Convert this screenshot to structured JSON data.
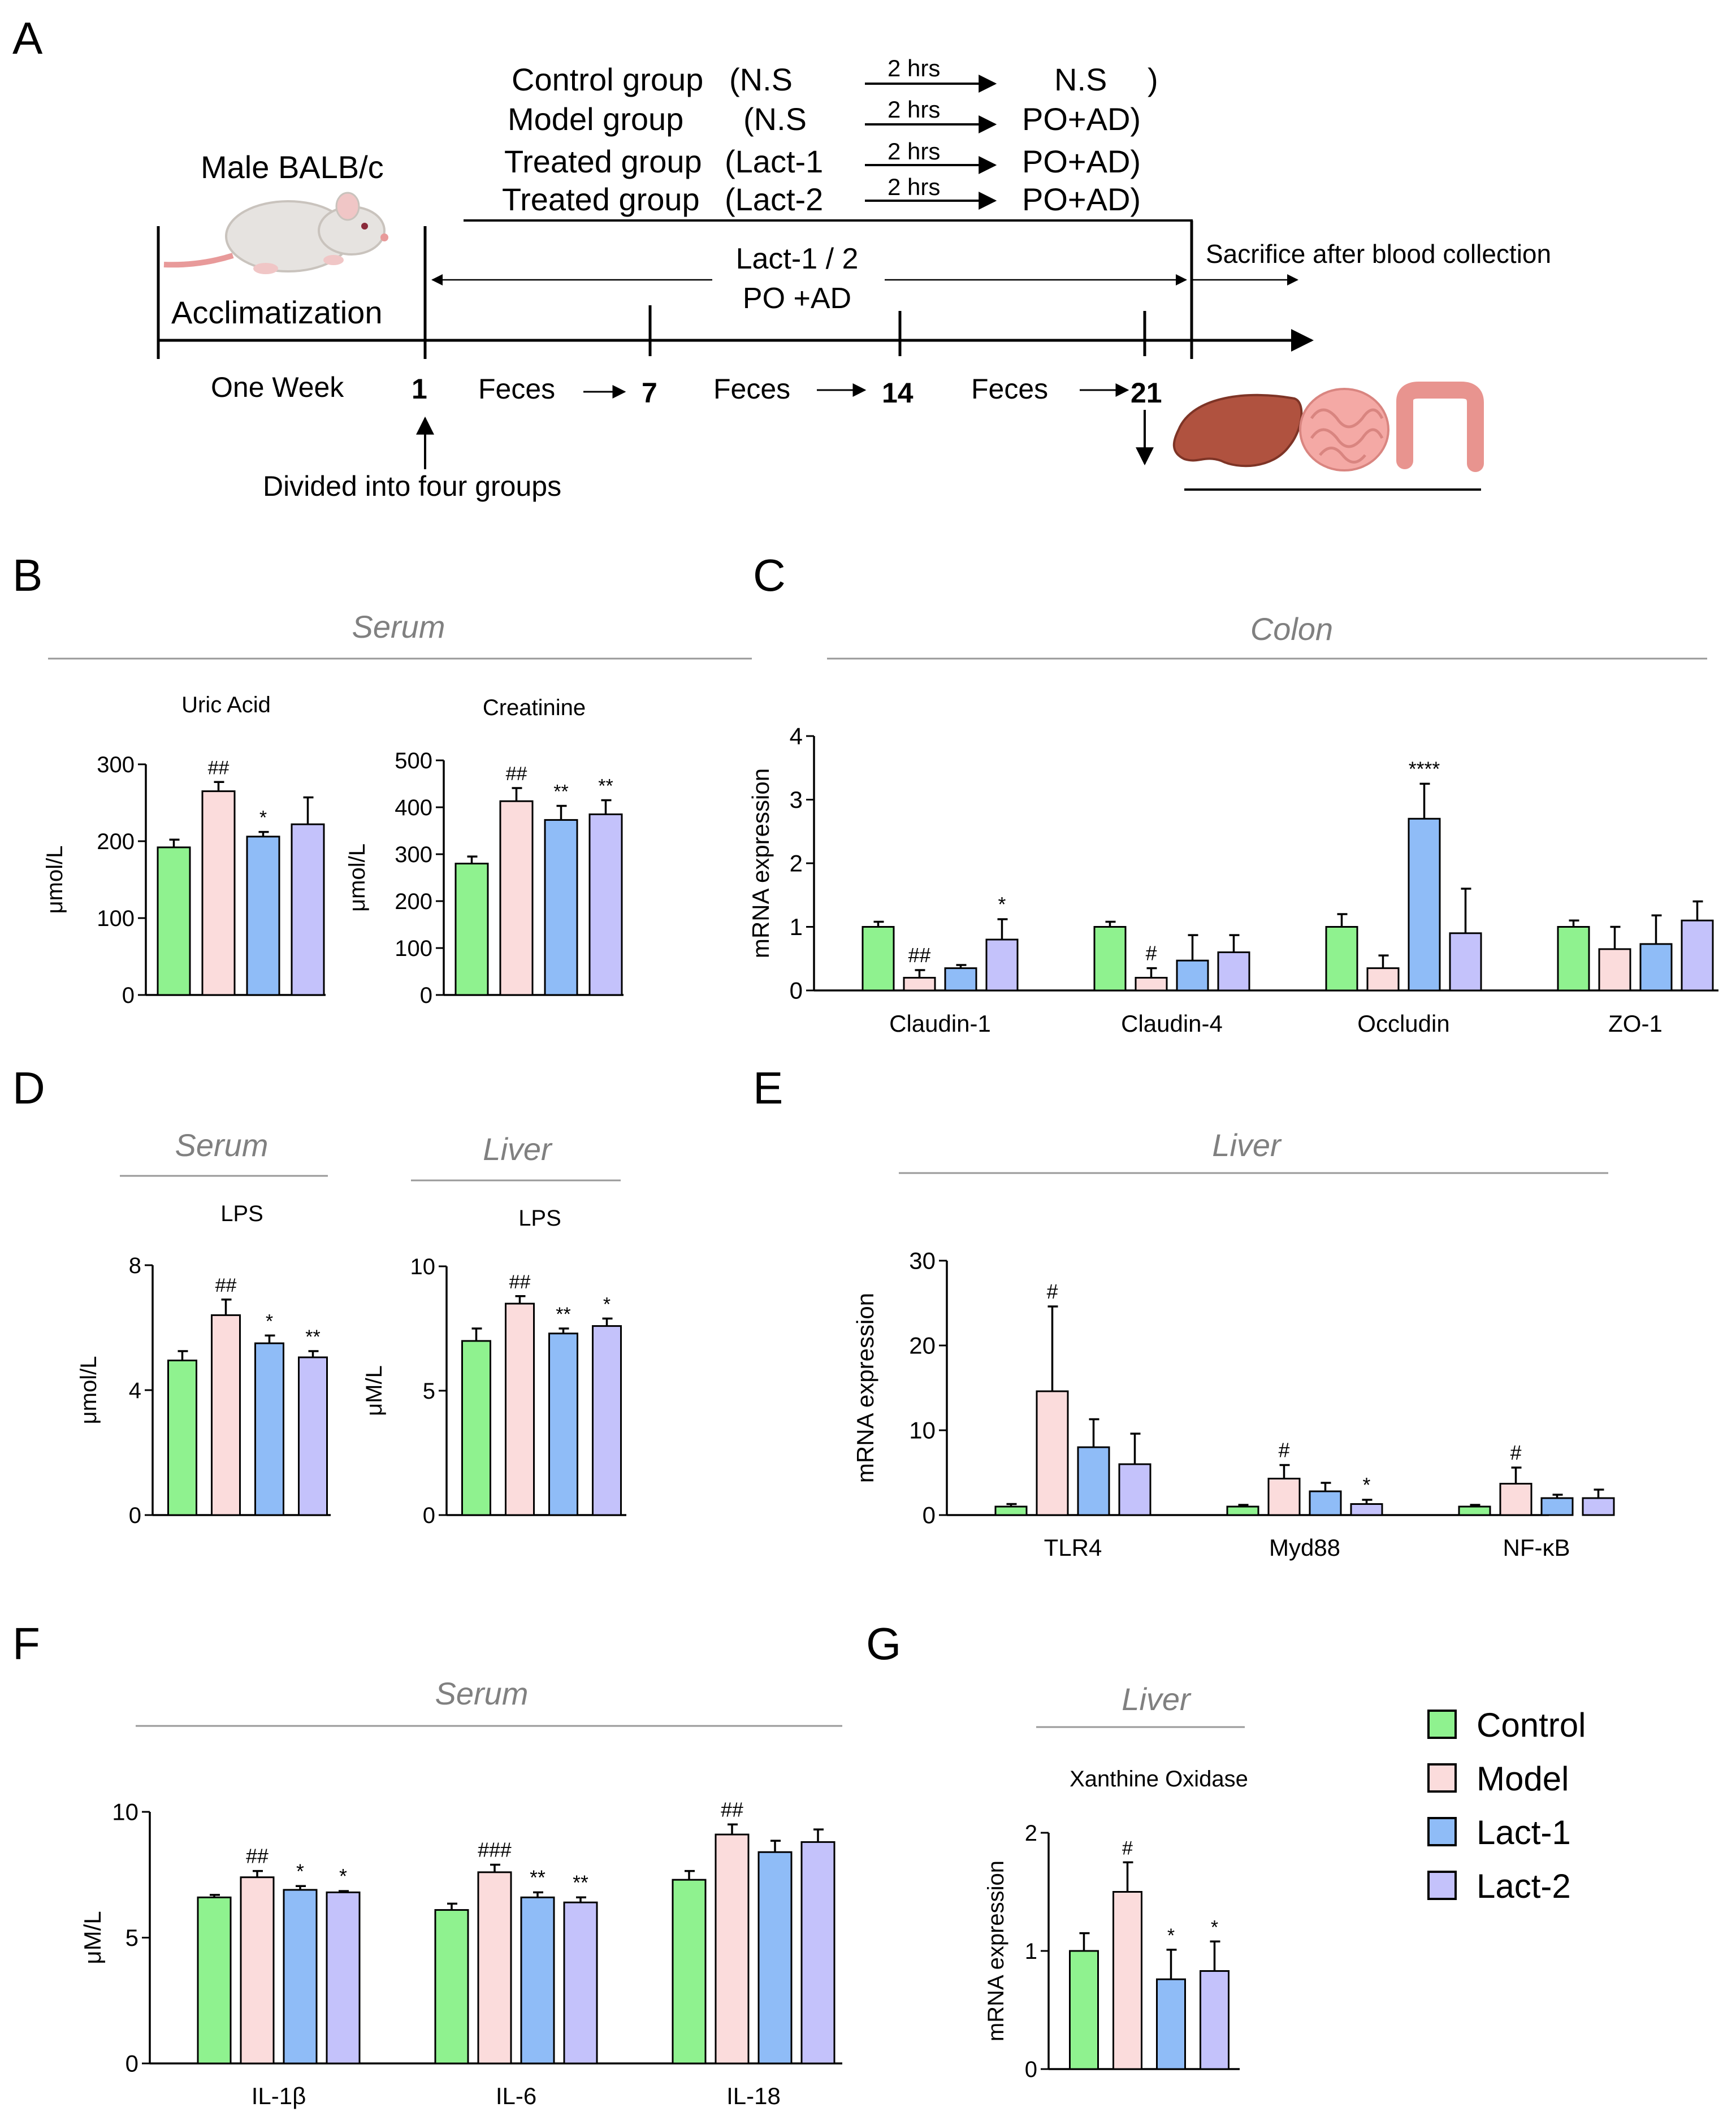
{
  "colors": {
    "Control": "#8ff28f",
    "Model": "#fbdcdc",
    "Lact-1": "#8fbcf7",
    "Lact-2": "#c4c2fb",
    "grey_text": "#808080"
  },
  "panel_A": {
    "label": "A",
    "animal": "Male BALB/c",
    "acclimatization": "Acclimatization",
    "groups": [
      {
        "name": "Control group",
        "pre": "(N.S",
        "interval": "2 hrs",
        "post": "N.S",
        "close": ")"
      },
      {
        "name": "Model group",
        "pre": "(N.S",
        "interval": "2 hrs",
        "post": "PO+AD)",
        "close": ""
      },
      {
        "name": "Treated group",
        "pre": "(Lact-1",
        "interval": "2 hrs",
        "post": "PO+AD)",
        "close": ""
      },
      {
        "name": "Treated group",
        "pre": "(Lact-2",
        "interval": "2 hrs",
        "post": "PO+AD)",
        "close": ""
      }
    ],
    "treatment_line1": "Lact-1 / 2",
    "treatment_line2": "PO +AD",
    "sacrifice": "Sacrifice after blood collection",
    "one_week": "One Week",
    "days": [
      "1",
      "7",
      "14",
      "21"
    ],
    "feces": "Feces",
    "divided": "Divided into four groups",
    "organ_icons": [
      "liver-icon",
      "small-intestine-icon",
      "colon-icon"
    ]
  },
  "legend": [
    "Control",
    "Model",
    "Lact-1",
    "Lact-2"
  ],
  "chart_data": [
    {
      "id": "B1",
      "panel": "B",
      "type": "bar",
      "section": "Serum",
      "title": "Uric Acid",
      "ylabel": "μmol/L",
      "ylim": [
        0,
        300
      ],
      "yticks": [
        "0",
        "100",
        "200",
        "300"
      ],
      "categories": [
        ""
      ],
      "series": [
        {
          "name": "Control",
          "values": [
            192
          ],
          "err": [
            10
          ],
          "sig": [
            ""
          ]
        },
        {
          "name": "Model",
          "values": [
            265
          ],
          "err": [
            12
          ],
          "sig": [
            "##"
          ]
        },
        {
          "name": "Lact-1",
          "values": [
            206
          ],
          "err": [
            6
          ],
          "sig": [
            "*"
          ]
        },
        {
          "name": "Lact-2",
          "values": [
            222
          ],
          "err": [
            35
          ],
          "sig": [
            ""
          ]
        }
      ]
    },
    {
      "id": "B2",
      "panel": "B",
      "type": "bar",
      "title": "Creatinine",
      "ylabel": "μmol/L",
      "ylim": [
        0,
        500
      ],
      "yticks": [
        "0",
        "100",
        "200",
        "300",
        "400",
        "500"
      ],
      "categories": [
        ""
      ],
      "series": [
        {
          "name": "Control",
          "values": [
            280
          ],
          "err": [
            15
          ],
          "sig": [
            ""
          ]
        },
        {
          "name": "Model",
          "values": [
            413
          ],
          "err": [
            28
          ],
          "sig": [
            "##"
          ]
        },
        {
          "name": "Lact-1",
          "values": [
            373
          ],
          "err": [
            30
          ],
          "sig": [
            "**"
          ]
        },
        {
          "name": "Lact-2",
          "values": [
            385
          ],
          "err": [
            30
          ],
          "sig": [
            "**"
          ]
        }
      ]
    },
    {
      "id": "C",
      "panel": "C",
      "type": "bar",
      "section": "Colon",
      "title": "",
      "ylabel": "mRNA expression",
      "ylim": [
        0,
        4
      ],
      "yticks": [
        "0",
        "1",
        "2",
        "3",
        "4"
      ],
      "categories": [
        "Claudin-1",
        "Claudin-4",
        "Occludin",
        "ZO-1"
      ],
      "series": [
        {
          "name": "Control",
          "values": [
            1.0,
            1.0,
            1.0,
            1.0
          ],
          "err": [
            0.08,
            0.08,
            0.2,
            0.1
          ],
          "sig": [
            "",
            "",
            "",
            ""
          ]
        },
        {
          "name": "Model",
          "values": [
            0.2,
            0.2,
            0.35,
            0.65
          ],
          "err": [
            0.12,
            0.15,
            0.2,
            0.35
          ],
          "sig": [
            "##",
            "#",
            "",
            ""
          ]
        },
        {
          "name": "Lact-1",
          "values": [
            0.35,
            0.47,
            2.7,
            0.73
          ],
          "err": [
            0.05,
            0.4,
            0.55,
            0.45
          ],
          "sig": [
            "",
            "",
            "****",
            ""
          ]
        },
        {
          "name": "Lact-2",
          "values": [
            0.8,
            0.6,
            0.9,
            1.1
          ],
          "err": [
            0.32,
            0.27,
            0.7,
            0.3
          ],
          "sig": [
            "*",
            "",
            "",
            ""
          ]
        }
      ]
    },
    {
      "id": "D1",
      "panel": "D",
      "type": "bar",
      "section": "Serum",
      "title": "LPS",
      "ylabel": "μmol/L",
      "ylim": [
        0,
        8
      ],
      "yticks": [
        "0",
        "4",
        "8"
      ],
      "categories": [
        ""
      ],
      "series": [
        {
          "name": "Control",
          "values": [
            4.95
          ],
          "err": [
            0.3
          ],
          "sig": [
            ""
          ]
        },
        {
          "name": "Model",
          "values": [
            6.4
          ],
          "err": [
            0.5
          ],
          "sig": [
            "##"
          ]
        },
        {
          "name": "Lact-1",
          "values": [
            5.5
          ],
          "err": [
            0.25
          ],
          "sig": [
            "*"
          ]
        },
        {
          "name": "Lact-2",
          "values": [
            5.05
          ],
          "err": [
            0.2
          ],
          "sig": [
            "**"
          ]
        }
      ]
    },
    {
      "id": "D2",
      "panel": "D",
      "type": "bar",
      "section": "Liver",
      "title": "LPS",
      "ylabel": "μM/L",
      "ylim": [
        0,
        10
      ],
      "yticks": [
        "0",
        "5",
        "10"
      ],
      "categories": [
        ""
      ],
      "series": [
        {
          "name": "Control",
          "values": [
            7.0
          ],
          "err": [
            0.5
          ],
          "sig": [
            ""
          ]
        },
        {
          "name": "Model",
          "values": [
            8.5
          ],
          "err": [
            0.3
          ],
          "sig": [
            "##"
          ]
        },
        {
          "name": "Lact-1",
          "values": [
            7.3
          ],
          "err": [
            0.2
          ],
          "sig": [
            "**"
          ]
        },
        {
          "name": "Lact-2",
          "values": [
            7.6
          ],
          "err": [
            0.3
          ],
          "sig": [
            "*"
          ]
        }
      ]
    },
    {
      "id": "E",
      "panel": "E",
      "type": "bar",
      "section": "Liver",
      "title": "",
      "ylabel": "mRNA expression",
      "ylim": [
        0,
        30
      ],
      "yticks": [
        "0",
        "10",
        "20",
        "30"
      ],
      "categories": [
        "TLR4",
        "Myd88",
        "NF-κB"
      ],
      "series": [
        {
          "name": "Control",
          "values": [
            1.0,
            1.0,
            1.0
          ],
          "err": [
            0.3,
            0.2,
            0.2
          ],
          "sig": [
            "",
            "",
            ""
          ]
        },
        {
          "name": "Model",
          "values": [
            14.6,
            4.3,
            3.7
          ],
          "err": [
            10,
            1.6,
            1.9
          ],
          "sig": [
            "#",
            "#",
            "#"
          ]
        },
        {
          "name": "Lact-1",
          "values": [
            8.0,
            2.8,
            2.0
          ],
          "err": [
            3.3,
            1.0,
            0.4
          ],
          "sig": [
            "",
            "",
            ""
          ]
        },
        {
          "name": "Lact-2",
          "values": [
            6.0,
            1.3,
            2.0
          ],
          "err": [
            3.6,
            0.5,
            1.0
          ],
          "sig": [
            "",
            "*",
            ""
          ]
        }
      ]
    },
    {
      "id": "F",
      "panel": "F",
      "type": "bar",
      "section": "Serum",
      "title": "",
      "ylabel": "μM/L",
      "ylim": [
        0,
        10
      ],
      "yticks": [
        "0",
        "5",
        "10"
      ],
      "categories": [
        "IL-1β",
        "IL-6",
        "IL-18"
      ],
      "series": [
        {
          "name": "Control",
          "values": [
            6.6,
            6.1,
            7.3
          ],
          "err": [
            0.1,
            0.25,
            0.35
          ],
          "sig": [
            "",
            "",
            ""
          ]
        },
        {
          "name": "Model",
          "values": [
            7.4,
            7.6,
            9.1
          ],
          "err": [
            0.25,
            0.3,
            0.4
          ],
          "sig": [
            "##",
            "###",
            "##"
          ]
        },
        {
          "name": "Lact-1",
          "values": [
            6.9,
            6.6,
            8.4
          ],
          "err": [
            0.15,
            0.2,
            0.45
          ],
          "sig": [
            "*",
            "**",
            ""
          ]
        },
        {
          "name": "Lact-2",
          "values": [
            6.8,
            6.4,
            8.8
          ],
          "err": [
            0.05,
            0.2,
            0.5
          ],
          "sig": [
            "*",
            "**",
            ""
          ]
        }
      ]
    },
    {
      "id": "G",
      "panel": "G",
      "type": "bar",
      "section": "Liver",
      "title": "Xanthine Oxidase",
      "ylabel": "mRNA expression",
      "ylim": [
        0,
        2
      ],
      "yticks": [
        "0",
        "1",
        "2"
      ],
      "categories": [
        ""
      ],
      "series": [
        {
          "name": "Control",
          "values": [
            1.0
          ],
          "err": [
            0.15
          ],
          "sig": [
            ""
          ]
        },
        {
          "name": "Model",
          "values": [
            1.5
          ],
          "err": [
            0.25
          ],
          "sig": [
            "#"
          ]
        },
        {
          "name": "Lact-1",
          "values": [
            0.76
          ],
          "err": [
            0.25
          ],
          "sig": [
            "*"
          ]
        },
        {
          "name": "Lact-2",
          "values": [
            0.83
          ],
          "err": [
            0.25
          ],
          "sig": [
            "*"
          ]
        }
      ]
    }
  ]
}
